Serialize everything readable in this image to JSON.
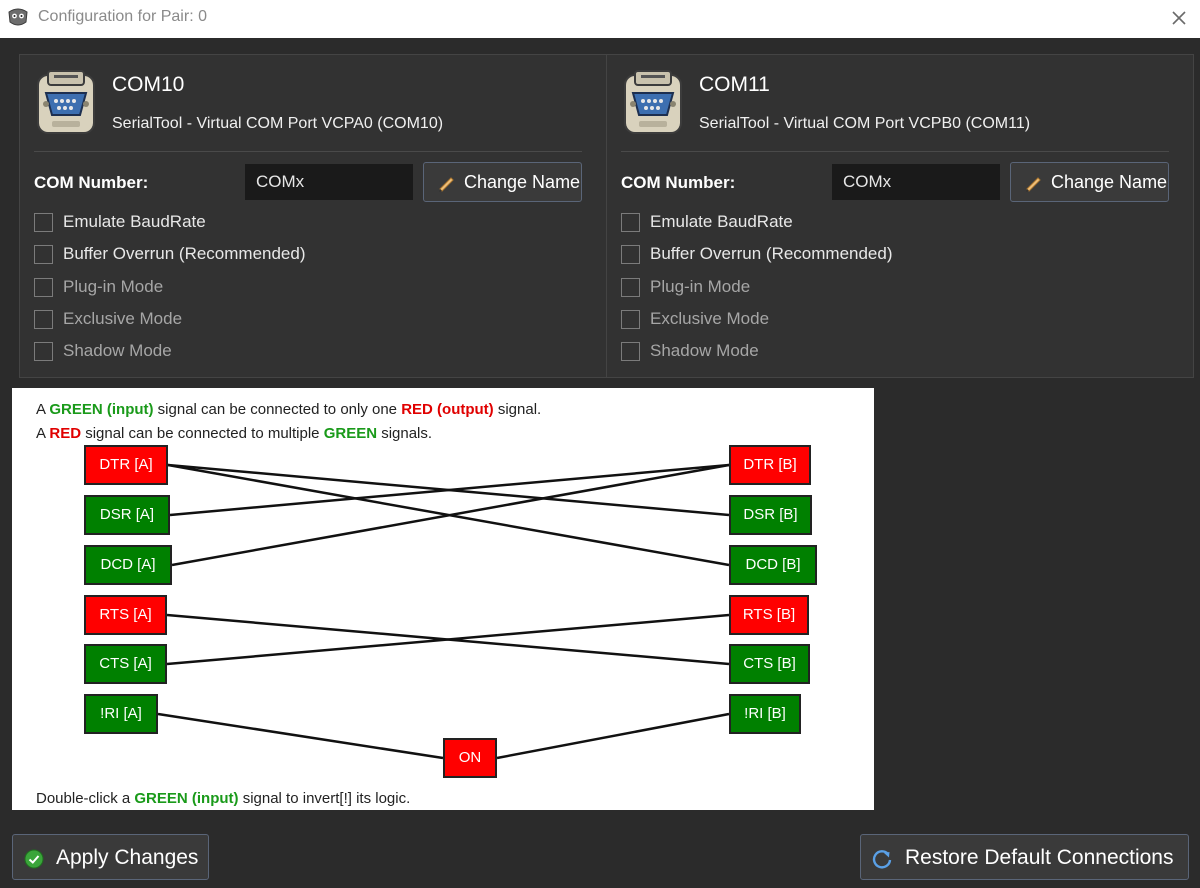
{
  "window": {
    "title": "Configuration for Pair: 0"
  },
  "ports": [
    {
      "name": "COM10",
      "description": "SerialTool - Virtual COM Port VCPA0 (COM10)",
      "com_number_label": "COM Number:",
      "com_value": "COMx",
      "change_name_label": "Change Name",
      "options": [
        {
          "label": "Emulate BaudRate",
          "enabled": true,
          "checked": false
        },
        {
          "label": "Buffer Overrun (Recommended)",
          "enabled": true,
          "checked": false
        },
        {
          "label": "Plug-in Mode",
          "enabled": false,
          "checked": false
        },
        {
          "label": "Exclusive Mode",
          "enabled": false,
          "checked": false
        },
        {
          "label": "Shadow Mode",
          "enabled": false,
          "checked": false
        }
      ]
    },
    {
      "name": "COM11",
      "description": "SerialTool - Virtual COM Port VCPB0 (COM11)",
      "com_number_label": "COM Number:",
      "com_value": "COMx",
      "change_name_label": "Change Name",
      "options": [
        {
          "label": "Emulate BaudRate",
          "enabled": true,
          "checked": false
        },
        {
          "label": "Buffer Overrun (Recommended)",
          "enabled": true,
          "checked": false
        },
        {
          "label": "Plug-in Mode",
          "enabled": false,
          "checked": false
        },
        {
          "label": "Exclusive Mode",
          "enabled": false,
          "checked": false
        },
        {
          "label": "Shadow Mode",
          "enabled": false,
          "checked": false
        }
      ]
    }
  ],
  "diagram": {
    "info1": {
      "p1": "A ",
      "g": "GREEN (input)",
      "p2": " signal can be connected to only one ",
      "r": "RED (output)",
      "p3": " signal."
    },
    "info2": {
      "p1": "A ",
      "r": "RED",
      "p2": " signal can be connected to multiple ",
      "g": "GREEN",
      "p3": " signals."
    },
    "footer": {
      "p1": "Double-click a ",
      "g": "GREEN (input)",
      "p2": " signal to invert[!] its logic."
    },
    "signals": {
      "dtr_a": {
        "label": "DTR [A]",
        "type": "red"
      },
      "dsr_a": {
        "label": "DSR [A]",
        "type": "green"
      },
      "dcd_a": {
        "label": "DCD [A]",
        "type": "green"
      },
      "rts_a": {
        "label": "RTS [A]",
        "type": "red"
      },
      "cts_a": {
        "label": "CTS [A]",
        "type": "green"
      },
      "ri_a": {
        "label": "!RI [A]",
        "type": "green"
      },
      "dtr_b": {
        "label": "DTR [B]",
        "type": "red"
      },
      "dsr_b": {
        "label": "DSR [B]",
        "type": "green"
      },
      "dcd_b": {
        "label": "DCD [B]",
        "type": "green"
      },
      "rts_b": {
        "label": "RTS [B]",
        "type": "red"
      },
      "cts_b": {
        "label": "CTS [B]",
        "type": "green"
      },
      "ri_b": {
        "label": "!RI [B]",
        "type": "green"
      },
      "on": {
        "label": "ON",
        "type": "red"
      }
    },
    "connections": [
      [
        "dtr_a",
        "dsr_b"
      ],
      [
        "dtr_a",
        "dcd_b"
      ],
      [
        "dtr_b",
        "dsr_a"
      ],
      [
        "dtr_b",
        "dcd_a"
      ],
      [
        "rts_a",
        "cts_b"
      ],
      [
        "rts_b",
        "cts_a"
      ],
      [
        "on",
        "ri_a"
      ],
      [
        "on",
        "ri_b"
      ]
    ],
    "colors": {
      "red": "#ff0000",
      "green": "#008000",
      "text_green": "#1a9a1a",
      "text_red": "#e00000"
    }
  },
  "buttons": {
    "apply": "Apply Changes",
    "restore": "Restore Default Connections"
  }
}
